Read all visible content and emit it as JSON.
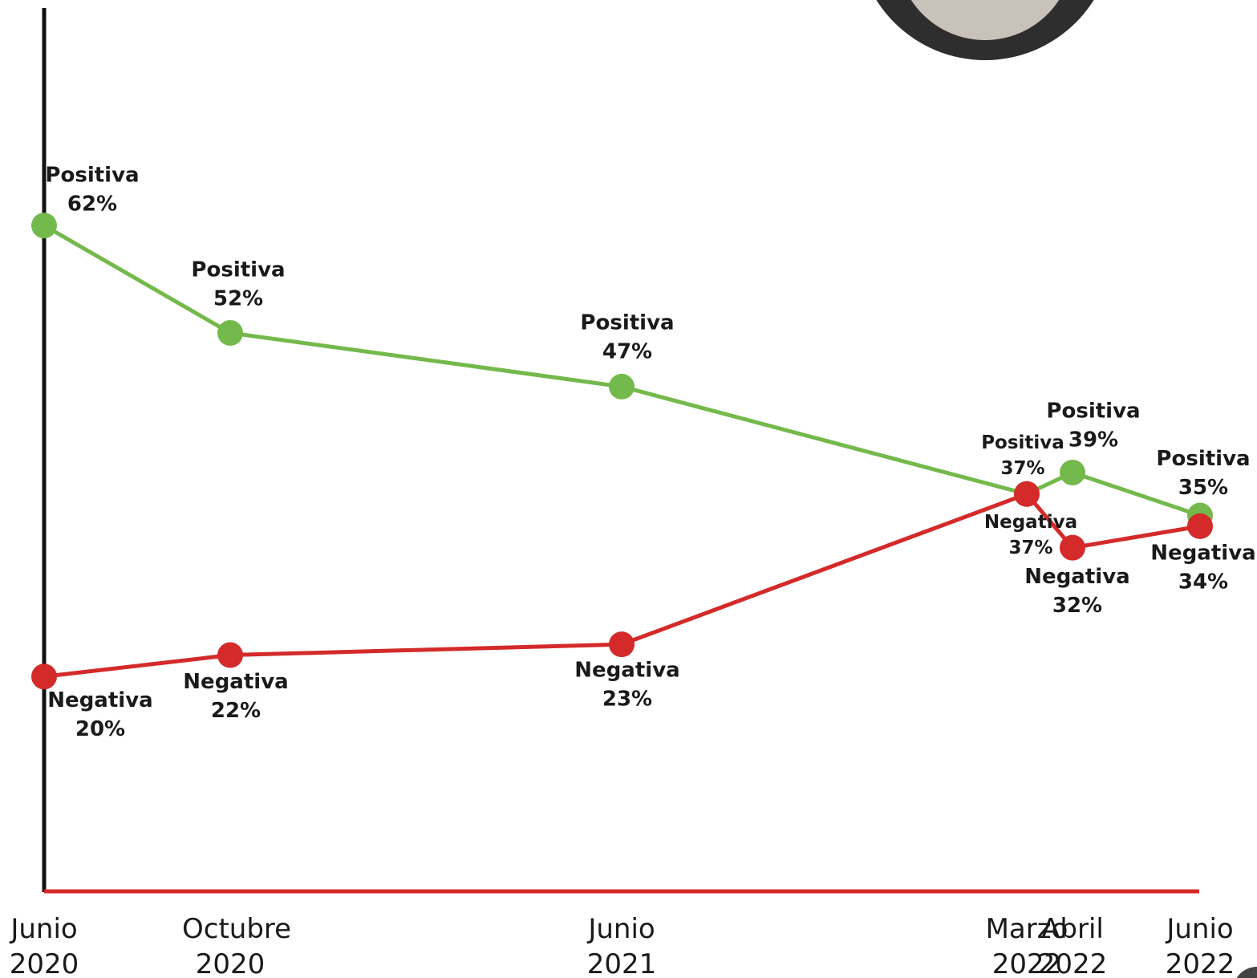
{
  "chart_data": {
    "type": "line",
    "categories": [
      "Junio 2020",
      "Octubre 2020",
      "Junio 2021",
      "Marzo 2022",
      "Abril 2022",
      "Junio 2022"
    ],
    "series": [
      {
        "name": "Positiva",
        "color": "#74b94b",
        "values": [
          62,
          52,
          47,
          37,
          39,
          35
        ],
        "value_labels": [
          "62%",
          "52%",
          "47%",
          "37%",
          "39%",
          "35%"
        ]
      },
      {
        "name": "Negativa",
        "color": "#d42a2a",
        "values": [
          20,
          22,
          23,
          37,
          32,
          34
        ],
        "value_labels": [
          "20%",
          "22%",
          "23%",
          "37%",
          "32%",
          "34%"
        ]
      }
    ],
    "ylim": [
      0,
      83
    ]
  }
}
